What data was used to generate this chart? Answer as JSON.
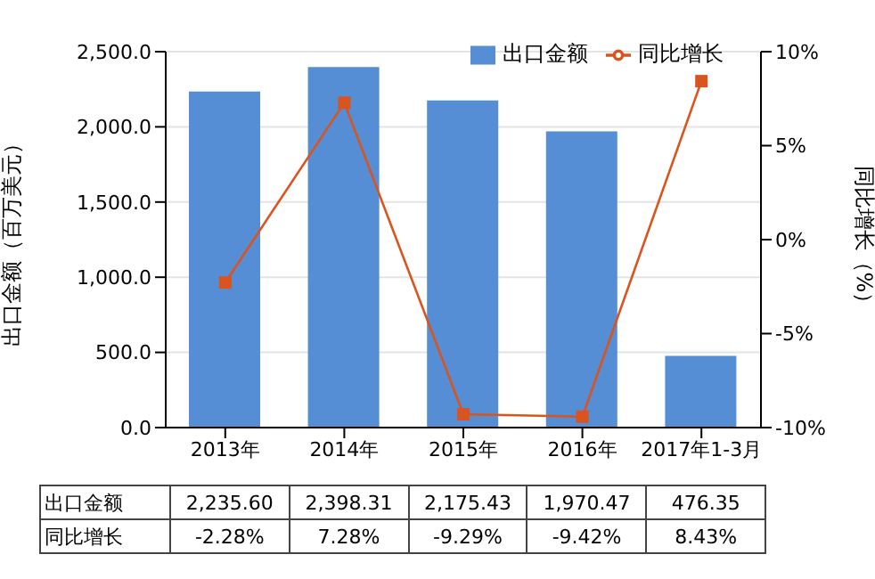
{
  "chart_data": {
    "type": "bar",
    "ylabel": "出口金额（百万美元）",
    "y2label": "同比增长（%）",
    "categories": [
      "2013年",
      "2014年",
      "2015年",
      "2016年",
      "2017年1-3月"
    ],
    "series": [
      {
        "name": "出口金额",
        "color": "#558ed5",
        "values": [
          2235.6,
          2398.31,
          2175.43,
          1970.47,
          476.35
        ],
        "value_labels": [
          "2,235.60",
          "2,398.31",
          "2,175.43",
          "1,970.47",
          "476.35"
        ]
      },
      {
        "name": "同比增长",
        "type": "line",
        "axis": "y2",
        "color": "#d9541e",
        "values": [
          -2.28,
          7.28,
          -9.29,
          -9.42,
          8.43
        ],
        "value_labels": [
          "-2.28%",
          "7.28%",
          "-9.29%",
          "-9.42%",
          "8.43%"
        ]
      }
    ],
    "ylim": [
      0,
      2500
    ],
    "yticks": [
      {
        "value": 0,
        "label": "0.0"
      },
      {
        "value": 500,
        "label": "500.0"
      },
      {
        "value": 1000,
        "label": "1,000.0"
      },
      {
        "value": 1500,
        "label": "1,500.0"
      },
      {
        "value": 2000,
        "label": "2,000.0"
      },
      {
        "value": 2500,
        "label": "2,500.0"
      }
    ],
    "y2lim": [
      -10,
      10
    ],
    "y2ticks": [
      {
        "value": -10,
        "label": "-10%"
      },
      {
        "value": -5,
        "label": "-5%"
      },
      {
        "value": 0,
        "label": "0%"
      },
      {
        "value": 5,
        "label": "5%"
      },
      {
        "value": 10,
        "label": "10%"
      }
    ],
    "grid": "y",
    "legend": "top right",
    "marker": "square"
  }
}
